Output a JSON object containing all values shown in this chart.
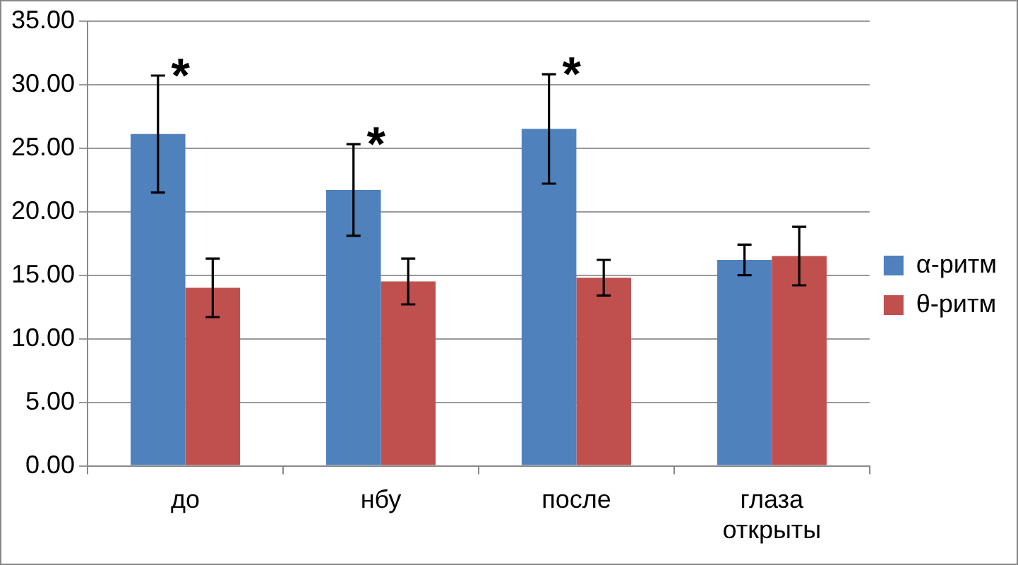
{
  "chart_data": {
    "type": "bar",
    "categories": [
      "до",
      "нбу",
      "после",
      "глаза открыты"
    ],
    "series": [
      {
        "name": "α-ритм",
        "color": "#4f81bd",
        "values": [
          26.1,
          21.7,
          26.5,
          16.2
        ],
        "errors": [
          4.6,
          3.6,
          4.3,
          1.2
        ]
      },
      {
        "name": "θ-ритм",
        "color": "#c0504d",
        "values": [
          14.0,
          14.5,
          14.8,
          16.5
        ],
        "errors": [
          2.3,
          1.8,
          1.4,
          2.3
        ]
      }
    ],
    "ylim": [
      0,
      35
    ],
    "yticks": [
      {
        "value": 0,
        "label": "0.00"
      },
      {
        "value": 5,
        "label": "5.00"
      },
      {
        "value": 10,
        "label": "10.00"
      },
      {
        "value": 15,
        "label": "15.00"
      },
      {
        "value": 20,
        "label": "20.00"
      },
      {
        "value": 25,
        "label": "25.00"
      },
      {
        "value": 30,
        "label": "30.00"
      },
      {
        "value": 35,
        "label": "35.00"
      }
    ],
    "annotations": [
      "*",
      "*",
      "*"
    ],
    "grid": "y",
    "legend": "right"
  }
}
